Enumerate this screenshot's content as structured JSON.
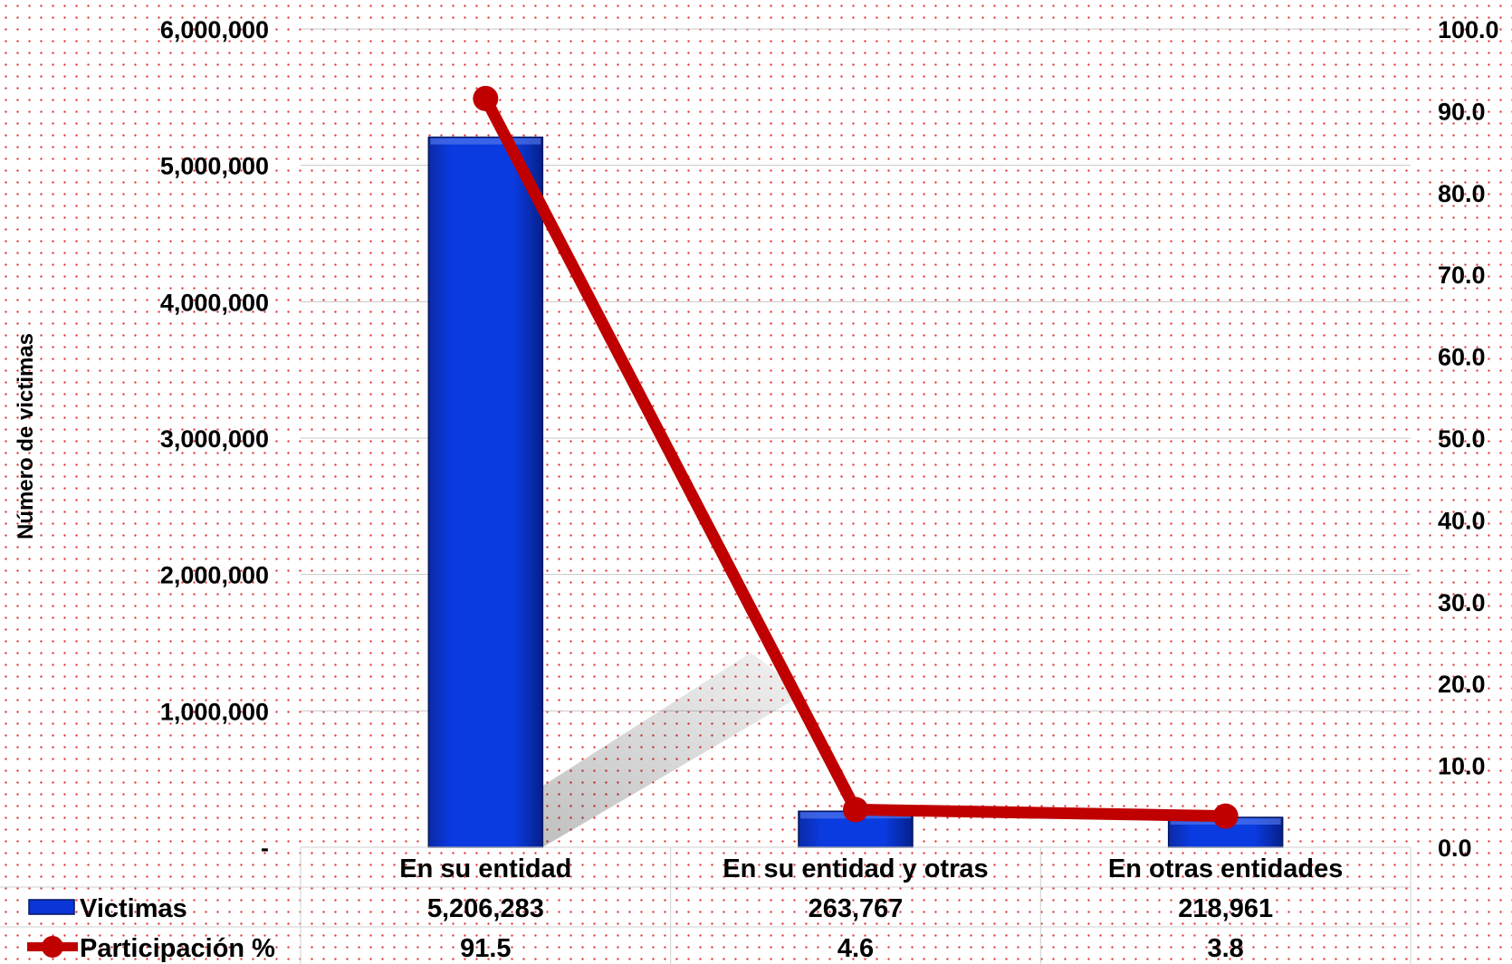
{
  "chart_data": {
    "type": "bar",
    "categories": [
      "En su entidad",
      "En su entidad y otras",
      "En otras entidades"
    ],
    "series": [
      {
        "name": "Victimas",
        "type": "bar",
        "axis": "left",
        "color": "#0a36d8",
        "values": [
          5206283,
          263767,
          218961
        ],
        "value_labels": [
          "5,206,283",
          "263,767",
          "218,961"
        ]
      },
      {
        "name": "Participación %",
        "type": "line",
        "axis": "right",
        "color": "#c00000",
        "values": [
          91.5,
          4.6,
          3.8
        ],
        "value_labels": [
          "91.5",
          "4.6",
          "3.8"
        ]
      }
    ],
    "y_left": {
      "label": "Número de victimas",
      "ylim": [
        0,
        6000000
      ],
      "ticks": [
        0,
        1000000,
        2000000,
        3000000,
        4000000,
        5000000,
        6000000
      ],
      "tick_labels": [
        "-",
        "1,000,000",
        "2,000,000",
        "3,000,000",
        "4,000,000",
        "5,000,000",
        "6,000,000"
      ]
    },
    "y_right": {
      "ylim": [
        0,
        100
      ],
      "ticks": [
        0,
        10,
        20,
        30,
        40,
        50,
        60,
        70,
        80,
        90,
        100
      ],
      "tick_labels": [
        "0.0",
        "10.0",
        "20.0",
        "30.0",
        "40.0",
        "50.0",
        "60.0",
        "70.0",
        "80.0",
        "90.0",
        "100.0"
      ]
    },
    "grid": true,
    "legend": "data-table"
  }
}
